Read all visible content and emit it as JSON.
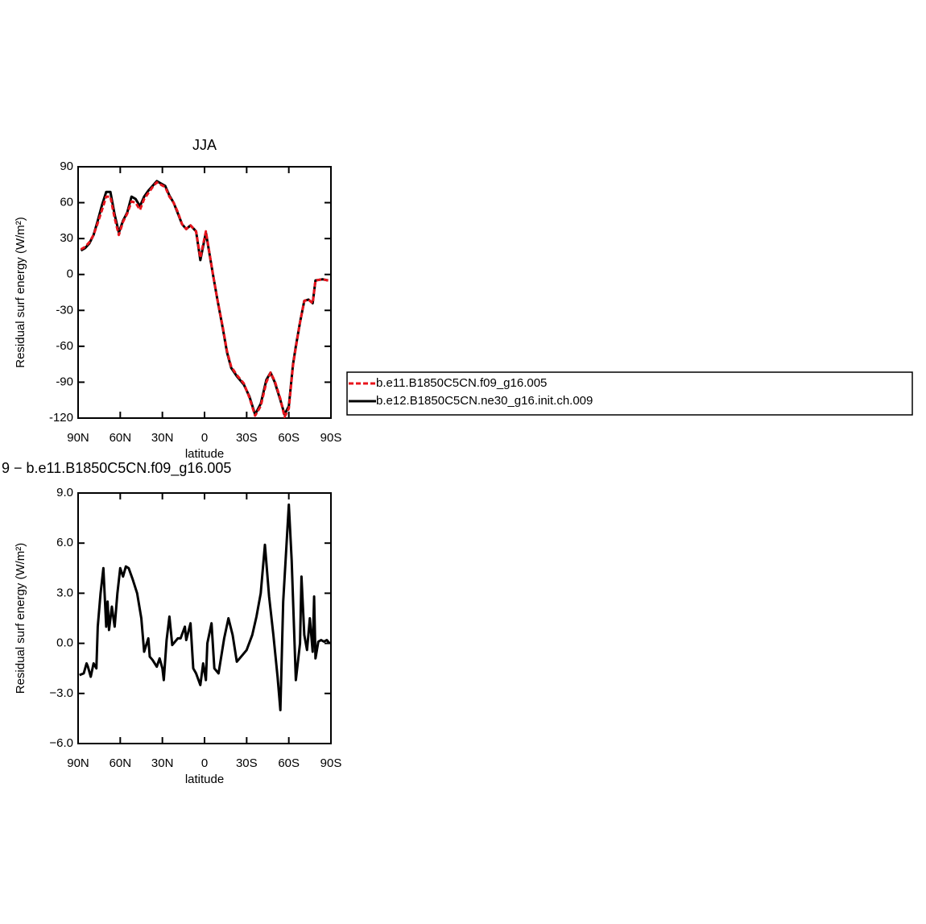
{
  "chart_data": [
    {
      "type": "line",
      "title": "JJA",
      "xlabel": "latitude",
      "ylabel": "Residual surf energy (W/m²)",
      "x": [
        88,
        85,
        82,
        79,
        76,
        73,
        70,
        67,
        64,
        61,
        58,
        55,
        52,
        49,
        46,
        43,
        40,
        37,
        34,
        31,
        28,
        25,
        22,
        19,
        16,
        13,
        10,
        6,
        3,
        -1,
        -6,
        -9,
        -13,
        -16,
        -19,
        -23,
        -28,
        -32,
        -36,
        -40,
        -44,
        -47,
        -50,
        -54,
        -57,
        -60,
        -63,
        -65,
        -68,
        -71,
        -74,
        -77,
        -79,
        -84,
        -88
      ],
      "series": [
        {
          "name": "b.e11.B1850C5CN.f09_g16.005",
          "color": "#e8141c",
          "line_style": "dashed",
          "values": [
            21,
            23,
            27,
            33,
            43,
            54,
            65,
            65,
            47,
            33,
            44,
            51,
            61,
            60,
            54,
            63,
            68,
            73,
            77,
            75,
            73,
            65,
            60,
            52,
            42,
            38,
            41,
            36,
            14,
            36,
            0,
            -20,
            -44,
            -64,
            -77,
            -84,
            -91,
            -103,
            -118,
            -110,
            -90,
            -82,
            -89,
            -104,
            -119,
            -112,
            -76,
            -61,
            -40,
            -22,
            -21,
            -24,
            -5,
            -4,
            -5
          ]
        },
        {
          "name": "b.e12.B1850C5CN.ne30_g16.init.ch.009",
          "color": "#000000",
          "line_style": "solid",
          "values": [
            20,
            22,
            26,
            33,
            45,
            58,
            69,
            69,
            50,
            35,
            45,
            52,
            65,
            63,
            57,
            65,
            70,
            74,
            78,
            76,
            74,
            66,
            60,
            51,
            42,
            38,
            41,
            36,
            12,
            35,
            0,
            -20,
            -45,
            -65,
            -78,
            -85,
            -92,
            -102,
            -117,
            -108,
            -88,
            -82,
            -90,
            -105,
            -117,
            -110,
            -75,
            -60,
            -40,
            -22,
            -21,
            -24,
            -5,
            -4,
            -5
          ]
        }
      ],
      "xlim": [
        90,
        -90
      ],
      "xticks": [
        {
          "value": 90,
          "label": "90N"
        },
        {
          "value": 60,
          "label": "60N"
        },
        {
          "value": 30,
          "label": "30N"
        },
        0,
        {
          "value": -30,
          "label": "30S"
        },
        {
          "value": -60,
          "label": "60S"
        },
        {
          "value": -90,
          "label": "90S"
        }
      ],
      "ylim": [
        -120,
        90
      ],
      "yticks": [
        -120,
        -90,
        -60,
        -30,
        0,
        30,
        60,
        90
      ],
      "legend": "right"
    },
    {
      "type": "line",
      "title": "9 − b.e11.B1850C5CN.f09_g16.005",
      "xlabel": "latitude",
      "ylabel": "Residual surf energy (W/m²)",
      "x": [
        89,
        86,
        84,
        83,
        81,
        79,
        77,
        76,
        74,
        72,
        70,
        69,
        68,
        66,
        64,
        62,
        60,
        58,
        56,
        54,
        51,
        48,
        45,
        43,
        40,
        39,
        37,
        34,
        32,
        30,
        29,
        27,
        25,
        23,
        19,
        17,
        14,
        13,
        10,
        8,
        6,
        3,
        1,
        -1,
        -2,
        -5,
        -7,
        -10,
        -14,
        -17,
        -20,
        -23,
        -26,
        -30,
        -34,
        -37,
        -40,
        -43,
        -46,
        -49,
        -52,
        -54,
        -56,
        -60,
        -62,
        -65,
        -68,
        -69,
        -71,
        -73,
        -75,
        -77,
        -78,
        -79,
        -81,
        -83,
        -85,
        -87,
        -89
      ],
      "series": [
        {
          "color": "#000000",
          "line_style": "solid",
          "values": [
            -1.9,
            -1.8,
            -1.2,
            -1.4,
            -2.0,
            -1.2,
            -1.5,
            1.0,
            3.0,
            4.5,
            1.0,
            2.5,
            0.8,
            2.2,
            1.0,
            3.0,
            4.5,
            4.0,
            4.6,
            4.5,
            3.8,
            3.0,
            1.5,
            -0.5,
            0.3,
            -0.8,
            -1.0,
            -1.4,
            -0.9,
            -1.5,
            -2.2,
            0.2,
            1.6,
            -0.1,
            0.3,
            0.3,
            1.0,
            0.2,
            1.2,
            -1.5,
            -1.8,
            -2.5,
            -1.2,
            -2.2,
            0.0,
            1.2,
            -1.5,
            -1.8,
            0.3,
            1.5,
            0.5,
            -1.1,
            -0.8,
            -0.4,
            0.5,
            1.6,
            3.0,
            5.9,
            2.8,
            0.5,
            -2.0,
            -4.0,
            2.5,
            8.3,
            5.0,
            -2.2,
            0.0,
            4.0,
            0.5,
            -0.4,
            1.5,
            -0.5,
            2.8,
            -0.9,
            0.1,
            0.2,
            0.1,
            0.2,
            0.0
          ]
        }
      ],
      "xlim": [
        90,
        -90
      ],
      "xticks": [
        {
          "value": 90,
          "label": "90N"
        },
        {
          "value": 60,
          "label": "60N"
        },
        {
          "value": 30,
          "label": "30N"
        },
        0,
        {
          "value": -30,
          "label": "30S"
        },
        {
          "value": -60,
          "label": "60S"
        },
        {
          "value": -90,
          "label": "90S"
        }
      ],
      "ylim": [
        -6,
        9
      ],
      "yticks": [
        {
          "value": -6,
          "label": "−6.0"
        },
        {
          "value": -3,
          "label": "−3.0"
        },
        {
          "value": 0,
          "label": "0.0"
        },
        {
          "value": 3,
          "label": "3.0"
        },
        {
          "value": 6,
          "label": "6.0"
        },
        {
          "value": 9,
          "label": "9.0"
        }
      ]
    }
  ]
}
